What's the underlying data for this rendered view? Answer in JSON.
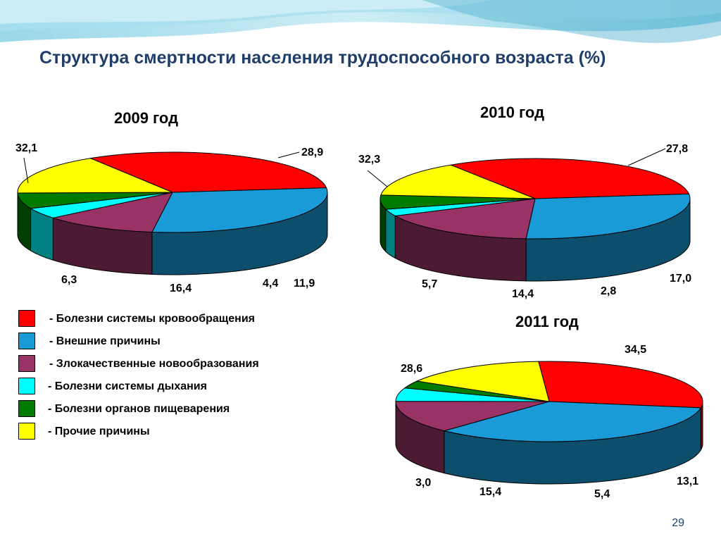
{
  "title": "Структура смертности населения трудоспособного возраста (%)",
  "page_number": "29",
  "legend": [
    {
      "label": "- Болезни системы кровообращения",
      "color": "#ff0000"
    },
    {
      "label": "- Внешние причины",
      "color": "#1a9bd7"
    },
    {
      "label": "- Злокачественные новообразования",
      "color": "#993366"
    },
    {
      "label": "- Болезни системы дыхания",
      "color": "#00ffff"
    },
    {
      "label": "- Болезни органов пищеварения",
      "color": "#007a00"
    },
    {
      "label": "- Прочие причины",
      "color": "#ffff00"
    }
  ],
  "chart_data": [
    {
      "type": "pie",
      "title": "2009 год",
      "categories": [
        "Болезни системы кровообращения",
        "Внешние причины",
        "Злокачественные новообразования",
        "Болезни системы дыхания",
        "Болезни органов пищеварения",
        "Прочие причины"
      ],
      "values": [
        32.1,
        28.9,
        11.9,
        4.4,
        6.3,
        16.4
      ],
      "labels": [
        "32,1",
        "28,9",
        "11,9",
        "4,4",
        "6,3",
        "16,4"
      ],
      "style": "3d"
    },
    {
      "type": "pie",
      "title": "2010 год",
      "categories": [
        "Болезни системы кровообращения",
        "Внешние причины",
        "Злокачественные новообразования",
        "Болезни системы дыхания",
        "Болезни органов пищеварения",
        "Прочие причины"
      ],
      "values": [
        32.3,
        27.8,
        17.0,
        2.8,
        5.7,
        14.4
      ],
      "labels": [
        "32,3",
        "27,8",
        "17,0",
        "2,8",
        "5,7",
        "14,4"
      ],
      "style": "3d"
    },
    {
      "type": "pie",
      "title": "2011 год",
      "categories": [
        "Болезни системы кровообращения",
        "Внешние причины",
        "Злокачественные новообразования",
        "Болезни системы дыхания",
        "Болезни органов пищеварения",
        "Прочие причины"
      ],
      "values": [
        28.6,
        34.5,
        13.1,
        5.4,
        3.0,
        15.4
      ],
      "labels": [
        "28,6",
        "34,5",
        "13,1",
        "5,4",
        "3,0",
        "15,4"
      ],
      "style": "3d"
    }
  ]
}
